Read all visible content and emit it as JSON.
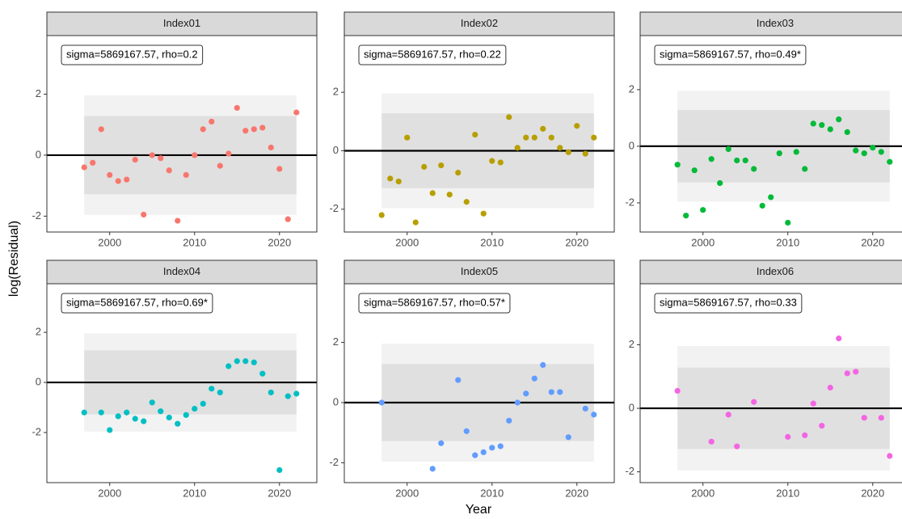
{
  "y_label": "log(Residual)",
  "x_label": "Year",
  "chart_data": [
    {
      "type": "scatter",
      "title": "Index01",
      "annotation": "sigma=5869167.57, rho=0.2",
      "color": "#F8766D",
      "x": [
        1997,
        1998,
        1999,
        2000,
        2001,
        2002,
        2003,
        2004,
        2005,
        2006,
        2007,
        2008,
        2009,
        2010,
        2011,
        2012,
        2013,
        2014,
        2015,
        2016,
        2017,
        2018,
        2019,
        2020,
        2021,
        2022
      ],
      "values": [
        -0.4,
        -0.25,
        0.85,
        -0.65,
        -0.85,
        -0.8,
        -0.15,
        -1.95,
        0.0,
        -0.1,
        -0.5,
        -2.15,
        -0.65,
        0.0,
        0.85,
        1.1,
        -0.35,
        0.05,
        1.55,
        0.8,
        0.85,
        0.9,
        0.25,
        -0.45,
        -2.1,
        1.4
      ],
      "bands": [
        {
          "lower": -1.96,
          "upper": 1.96,
          "color": "#f2f2f2"
        },
        {
          "lower": -1.28,
          "upper": 1.28,
          "color": "#e0e0e0"
        }
      ],
      "hline": 0,
      "xlim": [
        1992.6,
        2024.4
      ],
      "ylim": [
        -2.52,
        3.92
      ],
      "xticks": [
        2000,
        2010,
        2020
      ],
      "yticks": [
        -2,
        0,
        2
      ]
    },
    {
      "type": "scatter",
      "title": "Index02",
      "annotation": "sigma=5869167.57, rho=0.22",
      "color": "#B79F00",
      "x": [
        1997,
        1998,
        1999,
        2000,
        2001,
        2002,
        2003,
        2004,
        2005,
        2006,
        2007,
        2008,
        2009,
        2010,
        2011,
        2012,
        2013,
        2014,
        2015,
        2016,
        2017,
        2018,
        2019,
        2020,
        2021,
        2022
      ],
      "values": [
        -2.2,
        -0.95,
        -1.05,
        0.45,
        -2.45,
        -0.55,
        -1.45,
        -0.5,
        -1.5,
        -0.75,
        -1.75,
        0.55,
        -2.15,
        -0.35,
        -0.4,
        1.15,
        0.1,
        0.45,
        0.45,
        0.75,
        0.45,
        0.1,
        -0.05,
        0.85,
        -0.1,
        0.45
      ],
      "bands": [
        {
          "lower": -1.96,
          "upper": 1.96,
          "color": "#f2f2f2"
        },
        {
          "lower": -1.28,
          "upper": 1.28,
          "color": "#e0e0e0"
        }
      ],
      "hline": 0,
      "xlim": [
        1992.6,
        2024.4
      ],
      "ylim": [
        -2.78,
        3.94
      ],
      "xticks": [
        2000,
        2010,
        2020
      ],
      "yticks": [
        -2,
        0,
        2
      ]
    },
    {
      "type": "scatter",
      "title": "Index03",
      "annotation": "sigma=5869167.57, rho=0.49*",
      "color": "#00BA38",
      "x": [
        1997,
        1998,
        1999,
        2000,
        2001,
        2002,
        2003,
        2004,
        2005,
        2006,
        2007,
        2008,
        2009,
        2010,
        2011,
        2012,
        2013,
        2014,
        2015,
        2016,
        2017,
        2018,
        2019,
        2020,
        2021,
        2022
      ],
      "values": [
        -0.65,
        -2.45,
        -0.85,
        -2.25,
        -0.45,
        -1.3,
        -0.1,
        -0.5,
        -0.5,
        -0.8,
        -2.1,
        -1.8,
        -0.25,
        -2.7,
        -0.2,
        -0.8,
        0.8,
        0.75,
        0.6,
        0.95,
        0.5,
        -0.15,
        -0.25,
        -0.05,
        -0.2,
        -0.55
      ],
      "bands": [
        {
          "lower": -1.96,
          "upper": 1.96,
          "color": "#f2f2f2"
        },
        {
          "lower": -1.28,
          "upper": 1.28,
          "color": "#e0e0e0"
        }
      ],
      "hline": 0,
      "xlim": [
        1992.6,
        2024.4
      ],
      "ylim": [
        -3.03,
        3.91
      ],
      "xticks": [
        2000,
        2010,
        2020
      ],
      "yticks": [
        -2,
        0,
        2
      ]
    },
    {
      "type": "scatter",
      "title": "Index04",
      "annotation": "sigma=5869167.57, rho=0.69*",
      "color": "#00BFC4",
      "x": [
        1997,
        1999,
        2000,
        2001,
        2002,
        2003,
        2004,
        2005,
        2006,
        2007,
        2008,
        2009,
        2010,
        2011,
        2012,
        2013,
        2014,
        2015,
        2016,
        2017,
        2018,
        2019,
        2020,
        2021,
        2022
      ],
      "values": [
        -1.2,
        -1.2,
        -1.9,
        -1.35,
        -1.2,
        -1.45,
        -1.55,
        -0.8,
        -1.15,
        -1.4,
        -1.65,
        -1.3,
        -1.05,
        -0.85,
        -0.25,
        -0.4,
        0.65,
        0.85,
        0.85,
        0.8,
        0.35,
        -0.4,
        -3.5,
        -0.55,
        -0.45
      ],
      "bands": [
        {
          "lower": -1.96,
          "upper": 1.96,
          "color": "#f2f2f2"
        },
        {
          "lower": -1.28,
          "upper": 1.28,
          "color": "#e0e0e0"
        }
      ],
      "hline": 0,
      "xlim": [
        1992.6,
        2024.4
      ],
      "ylim": [
        -4.0,
        3.94
      ],
      "xticks": [
        2000,
        2010,
        2020
      ],
      "yticks": [
        -2,
        0,
        2
      ]
    },
    {
      "type": "scatter",
      "title": "Index05",
      "annotation": "sigma=5869167.57, rho=0.57*",
      "color": "#619CFF",
      "x": [
        1997,
        2003,
        2004,
        2006,
        2007,
        2008,
        2009,
        2010,
        2011,
        2012,
        2013,
        2014,
        2015,
        2016,
        2017,
        2018,
        2019,
        2021,
        2022
      ],
      "values": [
        0.0,
        -2.2,
        -1.35,
        0.75,
        -0.95,
        -1.75,
        -1.65,
        -1.5,
        -1.45,
        -0.6,
        0.0,
        0.3,
        0.8,
        1.25,
        0.35,
        0.35,
        -1.15,
        -0.2,
        -0.4
      ],
      "bands": [
        {
          "lower": -1.96,
          "upper": 1.96,
          "color": "#f2f2f2"
        },
        {
          "lower": -1.28,
          "upper": 1.28,
          "color": "#e0e0e0"
        }
      ],
      "hline": 0,
      "xlim": [
        1992.6,
        2024.4
      ],
      "ylim": [
        -2.66,
        3.95
      ],
      "xticks": [
        2000,
        2010,
        2020
      ],
      "yticks": [
        -2,
        0,
        2
      ]
    },
    {
      "type": "scatter",
      "title": "Index06",
      "annotation": "sigma=5869167.57, rho=0.33",
      "color": "#F564E3",
      "x": [
        1997,
        2001,
        2003,
        2004,
        2006,
        2010,
        2012,
        2013,
        2014,
        2015,
        2016,
        2017,
        2018,
        2019,
        2021,
        2022
      ],
      "values": [
        0.55,
        -1.05,
        -0.2,
        -1.2,
        0.2,
        -0.9,
        -0.85,
        0.15,
        -0.55,
        0.65,
        2.2,
        1.1,
        1.15,
        -0.3,
        -0.3,
        -1.5
      ],
      "bands": [
        {
          "lower": -1.96,
          "upper": 1.96,
          "color": "#f2f2f2"
        },
        {
          "lower": -1.28,
          "upper": 1.28,
          "color": "#e0e0e0"
        }
      ],
      "hline": 0,
      "xlim": [
        1992.6,
        2024.4
      ],
      "ylim": [
        -2.34,
        3.92
      ],
      "xticks": [
        2000,
        2010,
        2020
      ],
      "yticks": [
        -2,
        0,
        2
      ]
    }
  ]
}
